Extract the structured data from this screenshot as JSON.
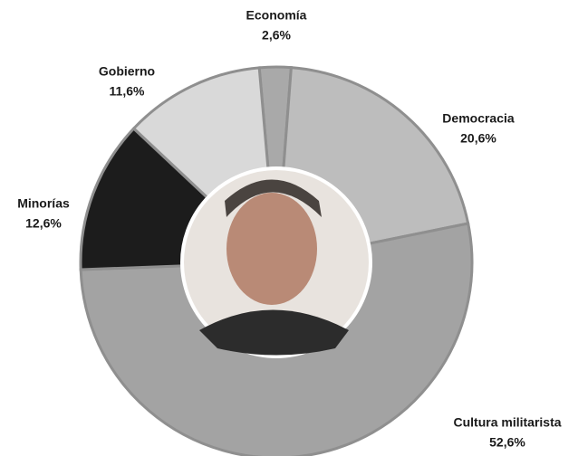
{
  "chart_data": {
    "type": "donut",
    "categories": [
      "Economía",
      "Democracia",
      "Cultura militarista",
      "Minorías",
      "Gobierno"
    ],
    "values": [
      2.6,
      20.6,
      52.6,
      12.6,
      11.6
    ],
    "value_labels": [
      "2,6%",
      "20,6%",
      "52,6%",
      "12,6%",
      "11,6%"
    ],
    "colors": [
      "#a9a9a9",
      "#bdbdbd",
      "#a3a3a3",
      "#1c1c1c",
      "#d9d9d9"
    ]
  }
}
